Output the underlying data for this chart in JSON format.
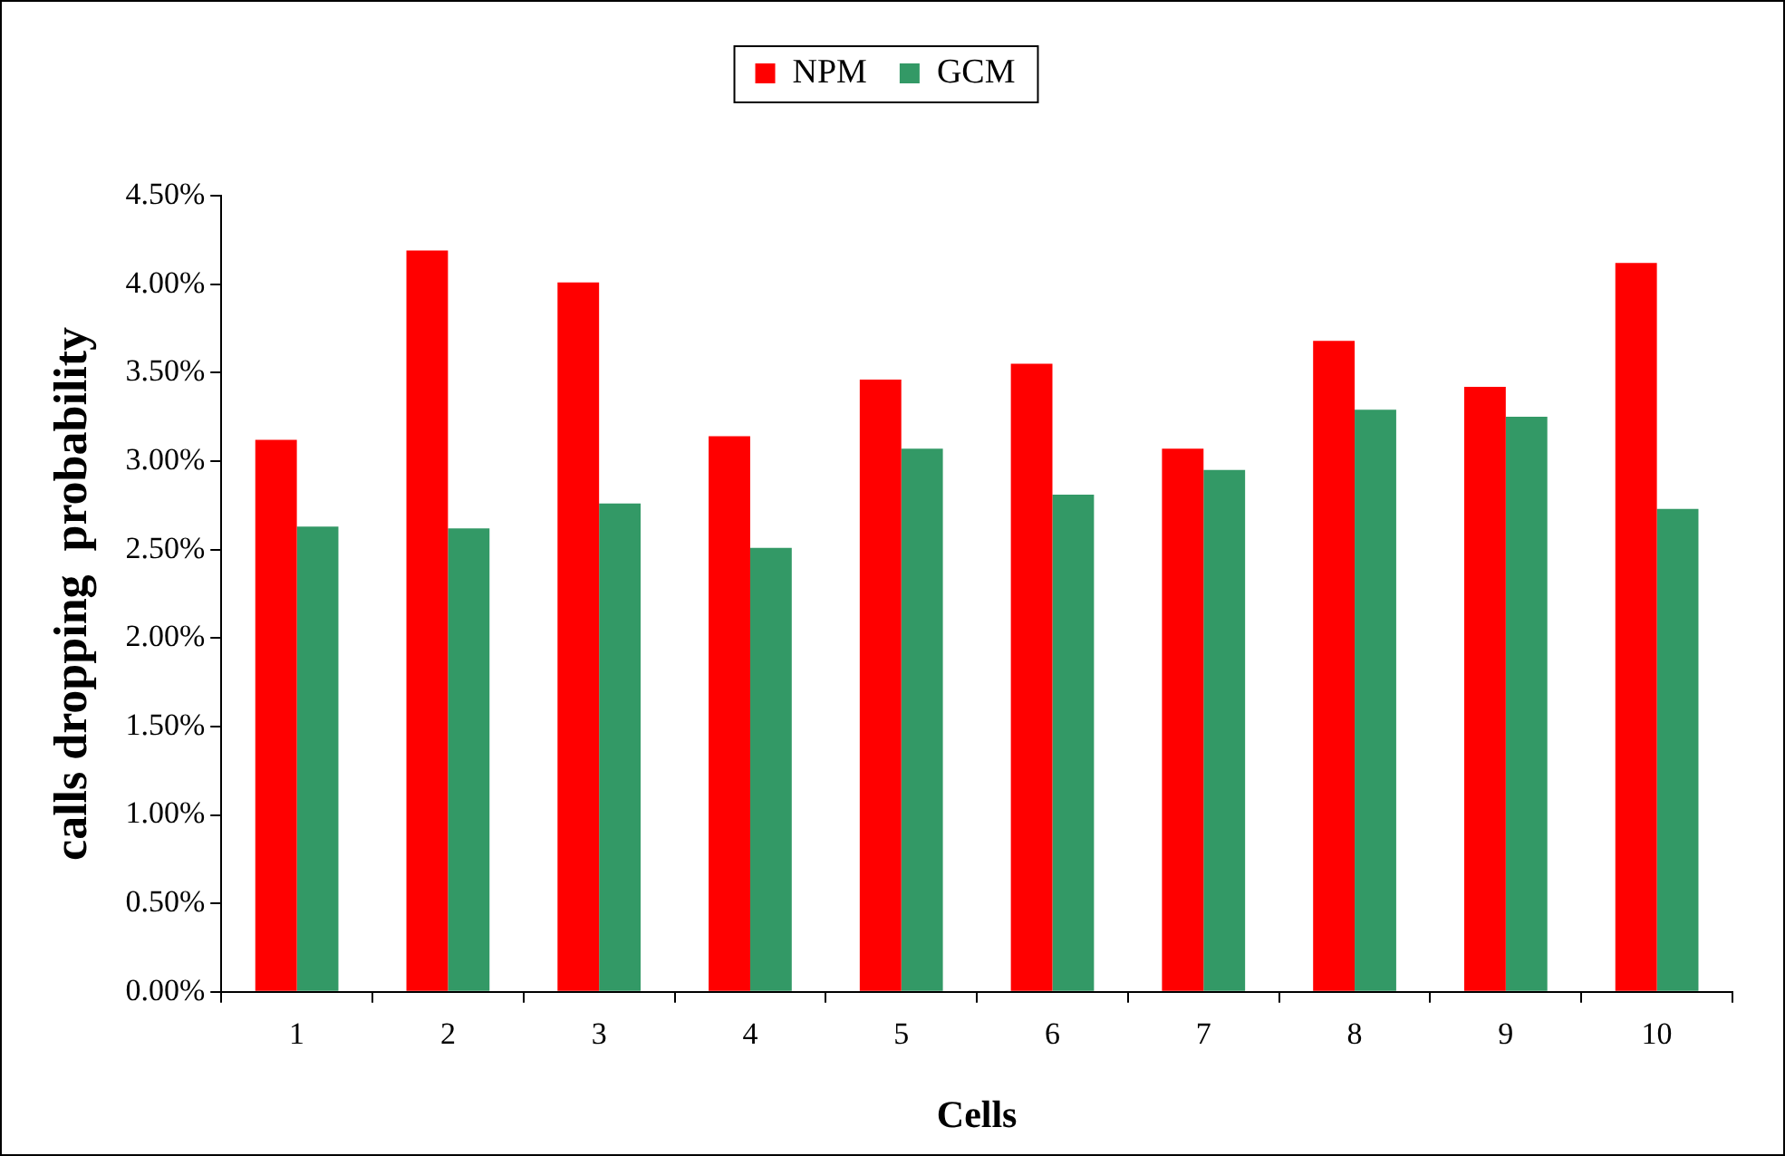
{
  "chart_data": {
    "type": "bar",
    "categories": [
      "1",
      "2",
      "3",
      "4",
      "5",
      "6",
      "7",
      "8",
      "9",
      "10"
    ],
    "series": [
      {
        "name": "NPM",
        "color": "#ff0000",
        "values": [
          3.12,
          4.19,
          4.01,
          3.14,
          3.46,
          3.55,
          3.07,
          3.68,
          3.42,
          4.12
        ]
      },
      {
        "name": "GCM",
        "color": "#339966",
        "values": [
          2.63,
          2.62,
          2.76,
          2.51,
          3.07,
          2.81,
          2.95,
          3.29,
          3.25,
          2.73
        ]
      }
    ],
    "xlabel": "Cells",
    "ylabel": "calls dropping  probability",
    "ylim": [
      0,
      4.5
    ],
    "yticks": [
      {
        "value": 0,
        "label": "0.00%"
      },
      {
        "value": 0.5,
        "label": "0.50%"
      },
      {
        "value": 1,
        "label": "1.00%"
      },
      {
        "value": 1.5,
        "label": "1.50%"
      },
      {
        "value": 2,
        "label": "2.00%"
      },
      {
        "value": 2.5,
        "label": "2.50%"
      },
      {
        "value": 3,
        "label": "3.00%"
      },
      {
        "value": 3.5,
        "label": "3.50%"
      },
      {
        "value": 4,
        "label": "4.00%"
      },
      {
        "value": 4.5,
        "label": "4.50%"
      }
    ],
    "legend": "top",
    "grid": false
  }
}
